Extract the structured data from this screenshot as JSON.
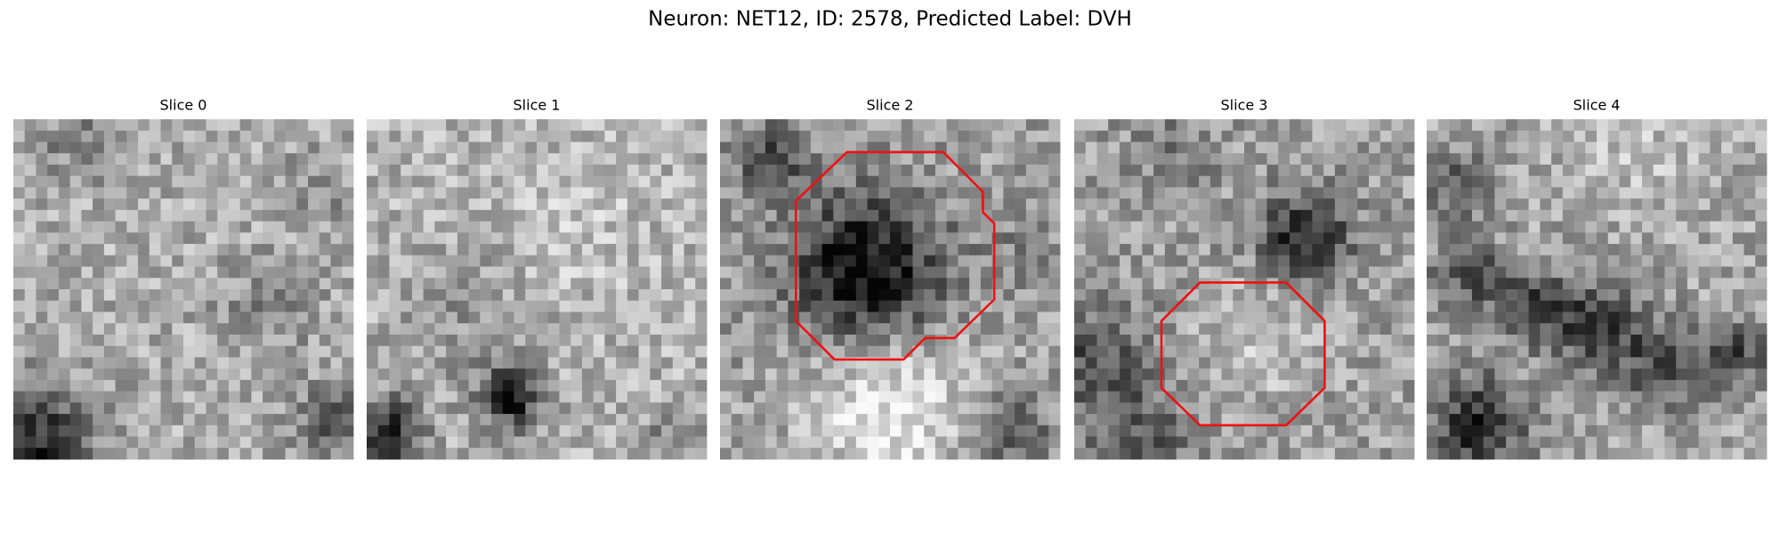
{
  "title": "Neuron: NET12, ID: 2578, Predicted Label: DVH",
  "panels": [
    "Slice 0",
    "Slice 1",
    "Slice 2",
    "Slice 3",
    "Slice 4"
  ]
}
